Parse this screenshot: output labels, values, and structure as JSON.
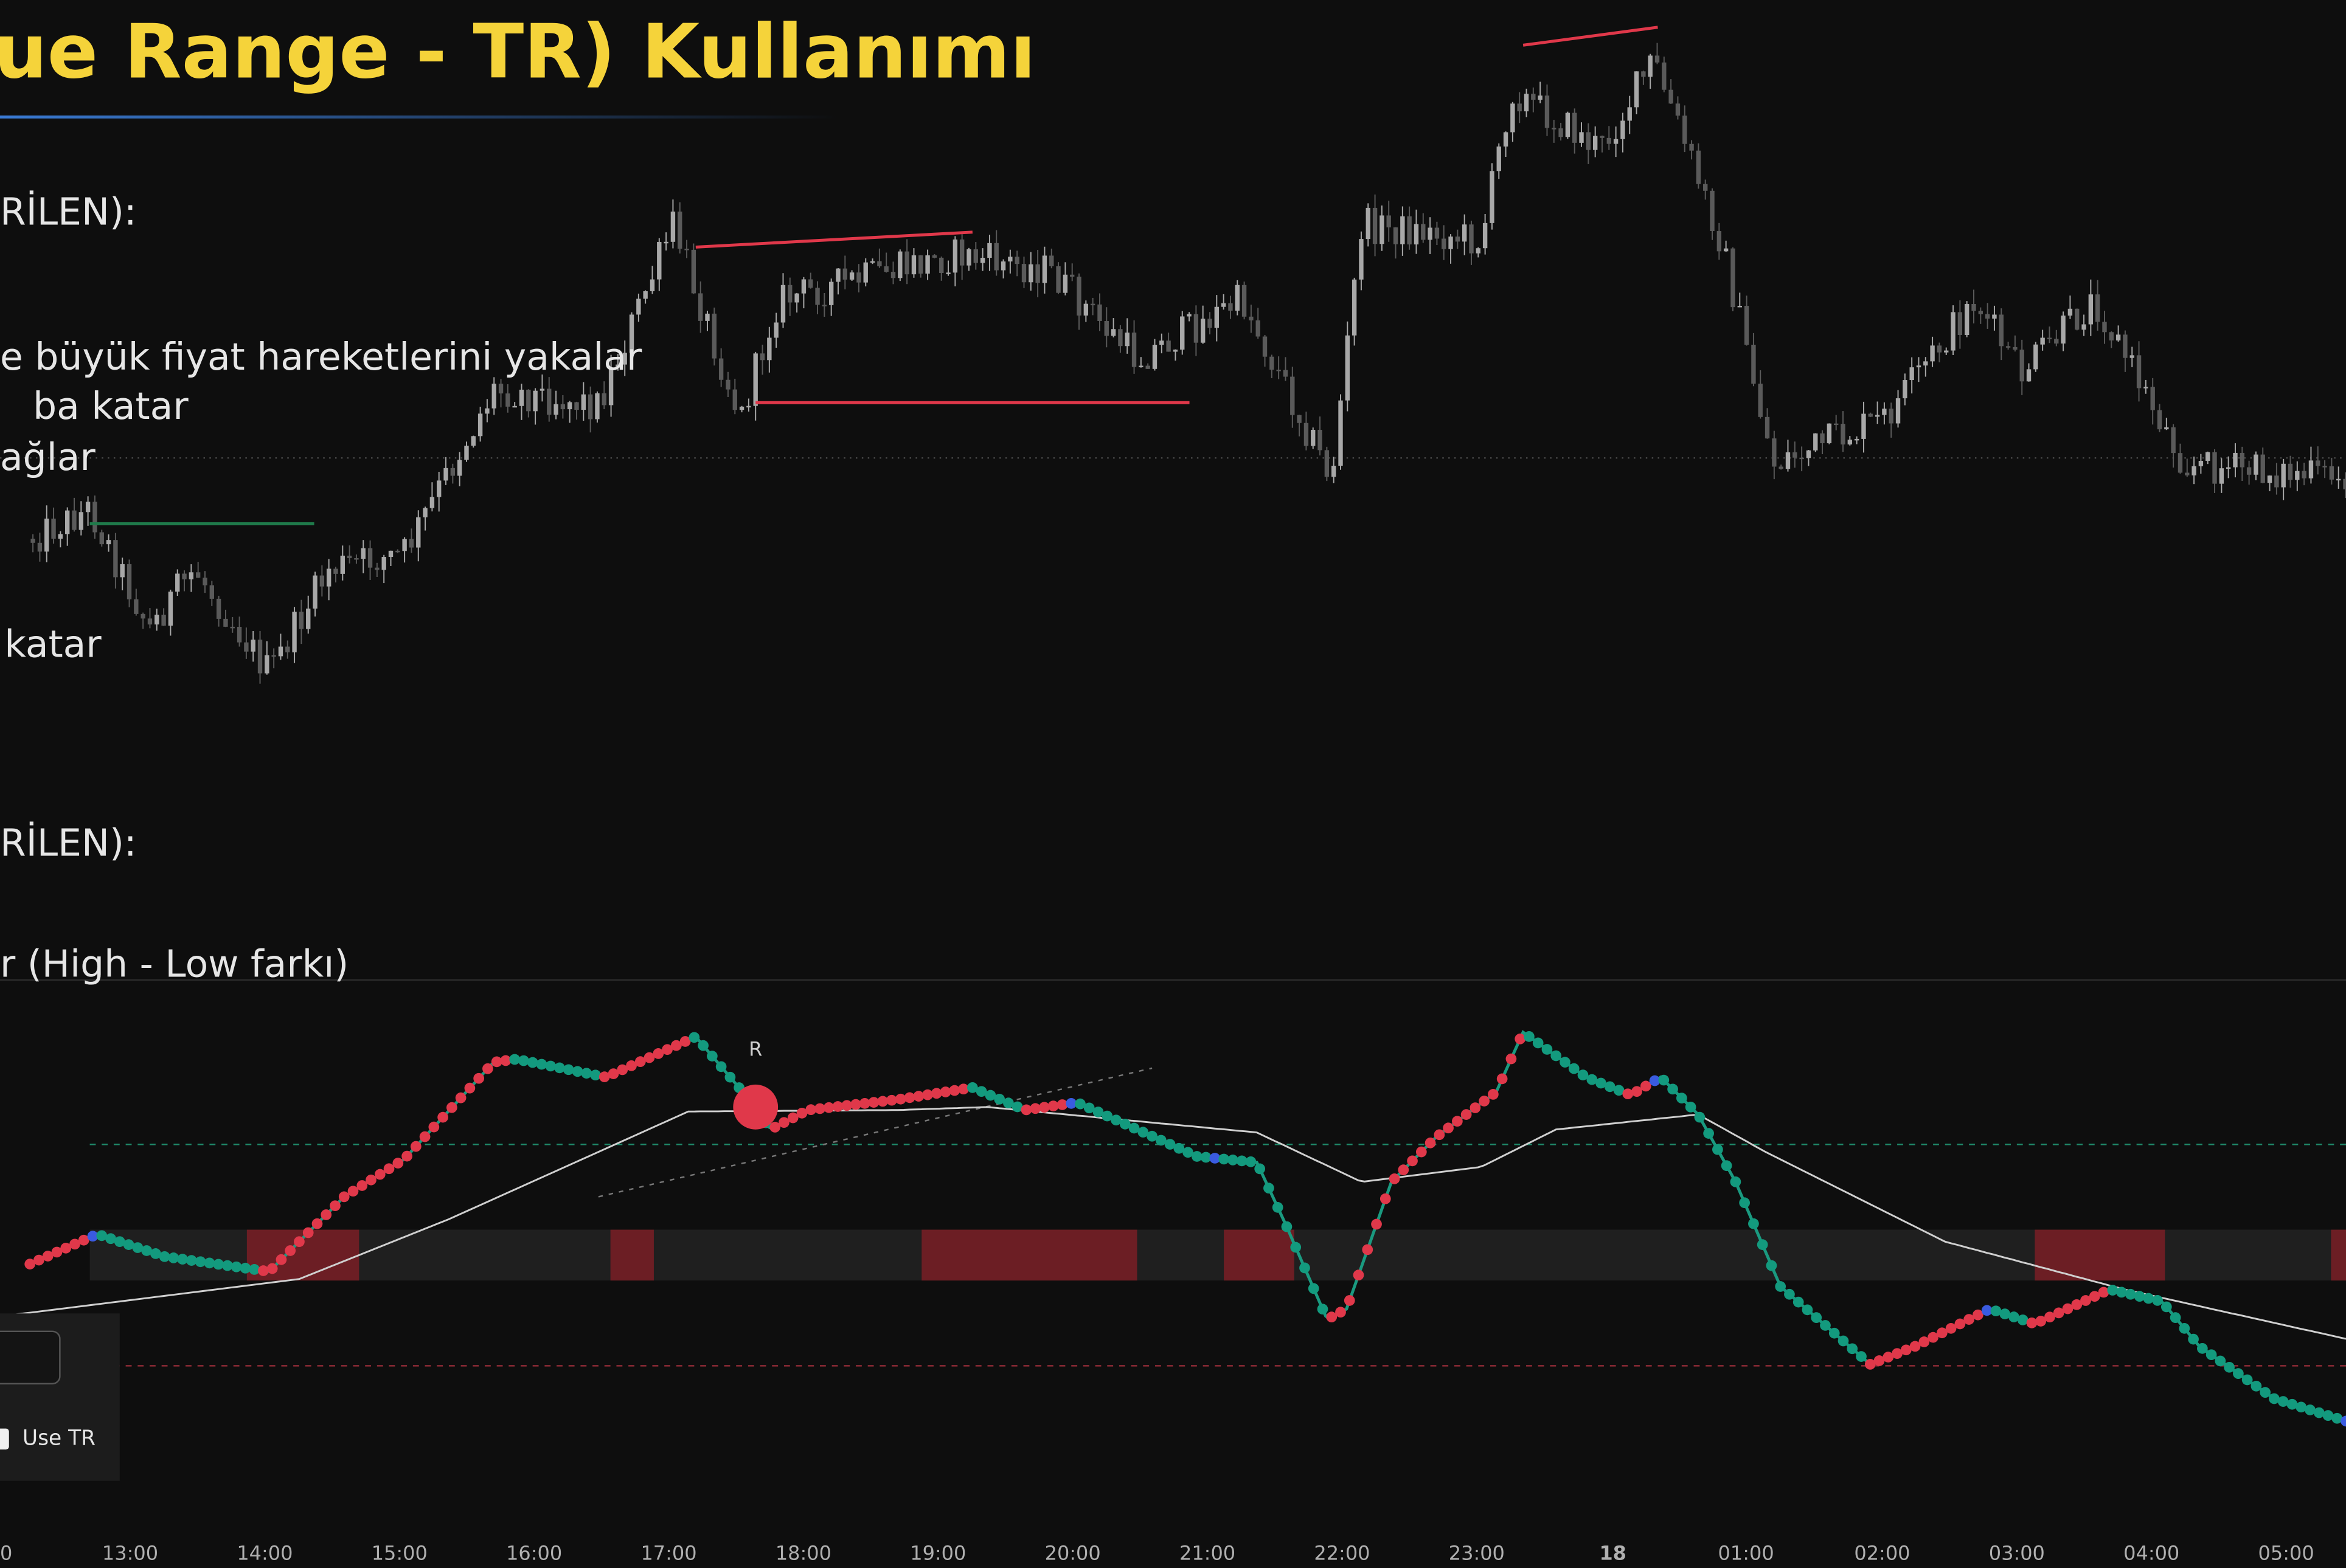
{
  "header": {
    "title": "ue Range - TR) Kullanımı"
  },
  "notes": [
    "RİLEN):",
    "e büyük fiyat hareketlerini yakalar",
    "ba katar",
    "ağlar",
    "katar",
    "RİLEN):",
    "r (High - Low farkı)"
  ],
  "marker": "R",
  "checkbox": "Use TR",
  "time_axis": [
    "00",
    "13:00",
    "14:00",
    "15:00",
    "16:00",
    "17:00",
    "18:00",
    "19:00",
    "20:00",
    "21:00",
    "22:00",
    "23:00",
    "18",
    "01:00",
    "02:00",
    "03:00",
    "04:00",
    "05:00"
  ]
}
